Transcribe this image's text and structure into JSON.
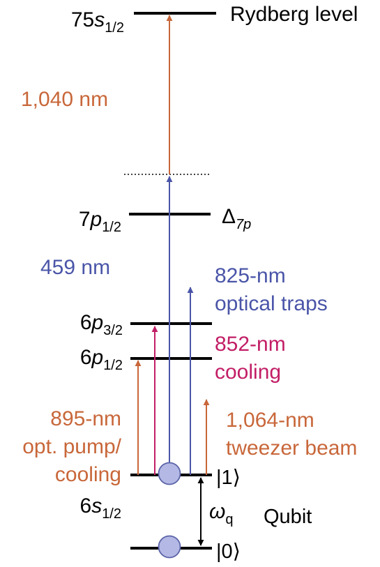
{
  "colors": {
    "orange": "#c8673a",
    "blue": "#4a55a8",
    "magenta": "#c21e66",
    "black": "#000000",
    "atom_fill": "#b4b8e4",
    "atom_stroke": "#5a63a8"
  },
  "levels": {
    "rydberg": {
      "main": "75",
      "italic": "s",
      "sub": "1/2",
      "side": "Rydberg level"
    },
    "p7": {
      "main": "7",
      "italic": "p",
      "sub": "1/2"
    },
    "delta": {
      "main": "Δ",
      "sub": "7p"
    },
    "p6_32": {
      "main": "6",
      "italic": "p",
      "sub": "3/2"
    },
    "p6_12": {
      "main": "6",
      "italic": "p",
      "sub": "1/2"
    },
    "s6": {
      "main": "6",
      "italic": "s",
      "sub": "1/2"
    },
    "ket1": "|1⟩",
    "ket0": "|0⟩"
  },
  "beams": {
    "rydberg_1040": "1,040 nm",
    "blue_459": "459 nm",
    "trap_825": {
      "line1": "825-nm",
      "line2": "optical traps"
    },
    "cool_852": {
      "line1": "852-nm",
      "line2": "cooling"
    },
    "pump_895": {
      "line1": "895-nm",
      "line2": "opt. pump/",
      "line3": "cooling"
    },
    "tweezer_1064": {
      "line1": "1,064-nm",
      "line2": "tweezer beam"
    }
  },
  "qubit": {
    "omega": "ω",
    "omega_sub": "q",
    "label": "Qubit"
  }
}
